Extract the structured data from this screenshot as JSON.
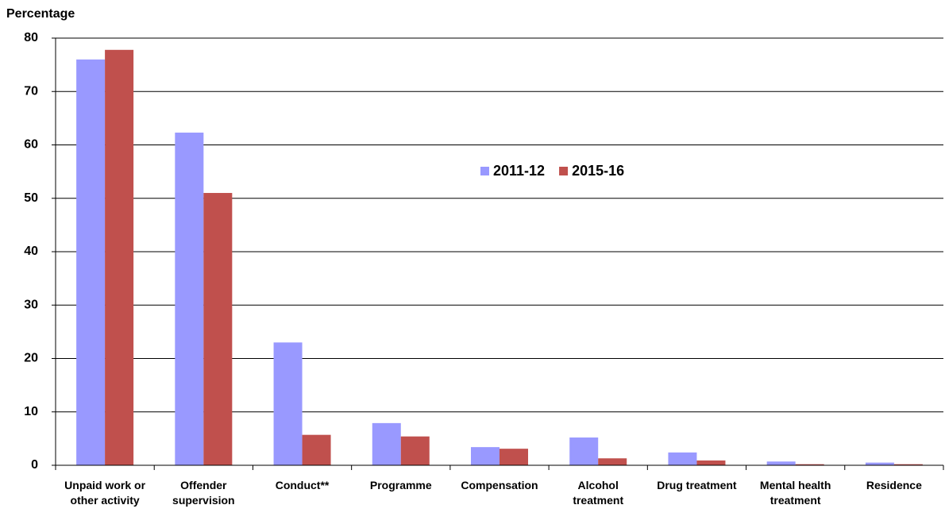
{
  "chart_data": {
    "type": "bar",
    "y_label": "Percentage",
    "categories": [
      "Unpaid work or other activity",
      "Offender supervision",
      "Conduct**",
      "Programme",
      "Compensation",
      "Alcohol treatment",
      "Drug treatment",
      "Mental health treatment",
      "Residence"
    ],
    "series": [
      {
        "name": "2011-12",
        "color": "#9999ff",
        "values": [
          76.0,
          62.3,
          23.0,
          7.9,
          3.4,
          5.2,
          2.4,
          0.7,
          0.5
        ]
      },
      {
        "name": "2015-16",
        "color": "#c0504d",
        "values": [
          77.8,
          51.0,
          5.7,
          5.4,
          3.1,
          1.3,
          0.9,
          0.2,
          0.2
        ]
      }
    ],
    "ylim": [
      0,
      80
    ],
    "yticks": [
      0,
      10,
      20,
      30,
      40,
      50,
      60,
      70,
      80
    ],
    "grid": true
  }
}
